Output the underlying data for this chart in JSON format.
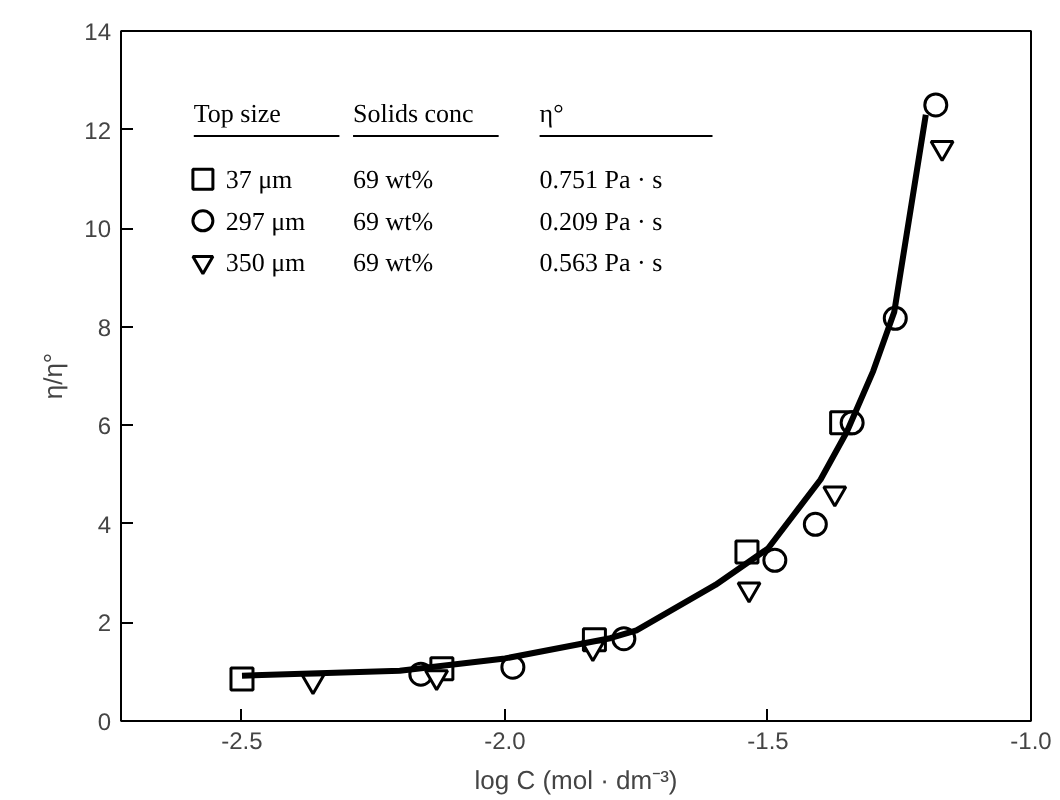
{
  "chart_data": {
    "type": "scatter",
    "xlabel": "log C (mol · dm⁻³)",
    "ylabel": "η/η°",
    "xlim": [
      -2.73,
      -1.0
    ],
    "xticks": [
      {
        "value": -2.5,
        "label": "-2.5"
      },
      {
        "value": -2.0,
        "label": "-2.0"
      },
      {
        "value": -1.5,
        "label": "-1.5"
      },
      {
        "value": -1.0,
        "label": "-1.0"
      }
    ],
    "ylim": [
      0,
      14
    ],
    "yticks": [
      0,
      2,
      4,
      6,
      8,
      10,
      12,
      14
    ],
    "grid": false,
    "legend": "top left",
    "series": [
      {
        "name": "37 μm",
        "color": "#000000",
        "marker": "square",
        "x": [
          -2.5,
          -2.12,
          -1.83,
          -1.54,
          -1.36
        ],
        "values": [
          0.85,
          1.06,
          1.65,
          3.43,
          6.05
        ]
      },
      {
        "name": "297 μm",
        "color": "#000000",
        "marker": "circle",
        "x": [
          -2.16,
          -1.985,
          -1.774,
          -1.487,
          -1.41,
          -1.34,
          -1.258,
          -1.181
        ],
        "values": [
          0.95,
          1.09,
          1.67,
          3.26,
          3.99,
          6.05,
          8.17,
          12.5
        ]
      },
      {
        "name": "350 μm",
        "color": "#000000",
        "marker": "triangle",
        "x": [
          -2.365,
          -2.13,
          -1.833,
          -1.536,
          -1.373,
          -1.169
        ],
        "values": [
          0.81,
          0.89,
          1.48,
          2.67,
          4.62,
          11.63
        ]
      },
      {
        "type": "line",
        "color": "#000000",
        "marker": "none",
        "x": [
          -2.5,
          -2.2,
          -2.0,
          -1.8,
          -1.75,
          -1.6,
          -1.5,
          -1.45,
          -1.4,
          -1.35,
          -1.3,
          -1.26,
          -1.2
        ],
        "values": [
          0.92,
          1.02,
          1.27,
          1.68,
          1.84,
          2.76,
          3.5,
          4.2,
          4.9,
          5.87,
          7.1,
          8.3,
          12.3
        ]
      }
    ],
    "annotations": [
      "Top size",
      "Solids conc",
      "η°",
      "69 wt%",
      "0.751 Pa · s",
      "69 wt%",
      "0.209 Pa · s",
      "69 wt%",
      "0.563 Pa · s"
    ]
  }
}
